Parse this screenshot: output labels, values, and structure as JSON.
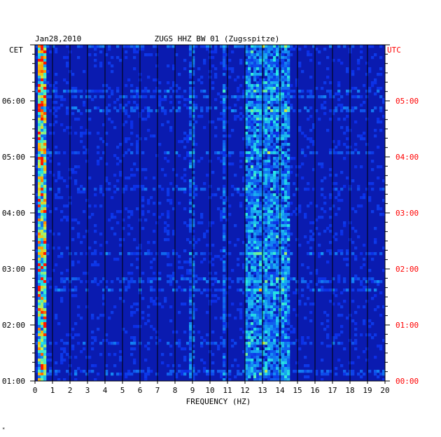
{
  "chart_data": {
    "type": "heatmap",
    "date": "Jan28,2010",
    "title": "ZUGS HHZ BW 01 (Zugsspitze)",
    "xlabel": "FREQUENCY (HZ)",
    "xlim": [
      0,
      20
    ],
    "x_ticks": [
      "0",
      "1",
      "2",
      "3",
      "4",
      "5",
      "6",
      "7",
      "8",
      "9",
      "10",
      "11",
      "12",
      "13",
      "14",
      "15",
      "16",
      "17",
      "18",
      "19",
      "20"
    ],
    "left_axis_label": "CET",
    "left_ticks": [
      "06:00",
      "05:00",
      "04:00",
      "03:00",
      "02:00",
      "01:00"
    ],
    "right_axis_label": "UTC",
    "right_ticks": [
      "05:00",
      "04:00",
      "03:00",
      "02:00",
      "01:00",
      "00:00"
    ],
    "time_range_cet": [
      "01:00",
      "07:00"
    ],
    "colors": {
      "background": "#0a1bb0",
      "grid": "#000000",
      "left_axis_text": "#000000",
      "right_axis_text": "#ff0000"
    },
    "features": [
      {
        "name": "low-frequency energy",
        "freq_hz": [
          0.1,
          0.6
        ],
        "level": "high"
      },
      {
        "name": "band 12-14.5 Hz",
        "freq_hz": [
          12.0,
          14.5
        ],
        "level": "medium"
      },
      {
        "name": "line near 9 Hz",
        "freq_hz": [
          8.8,
          9.1
        ],
        "level": "low"
      },
      {
        "name": "line near 10.8 Hz",
        "freq_hz": [
          10.7,
          10.9
        ],
        "level": "low"
      }
    ]
  },
  "footer_mark": "*"
}
